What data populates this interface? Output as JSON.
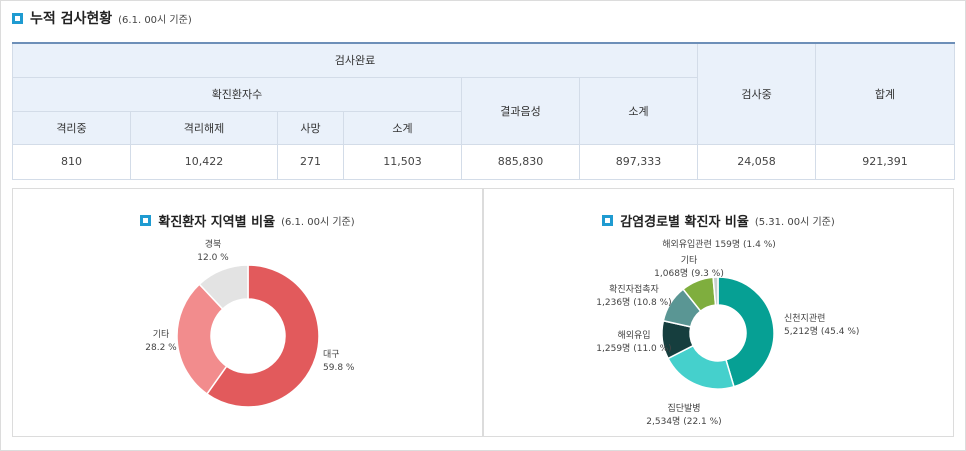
{
  "header": {
    "title": "누적 검사현황",
    "date": "(6.1. 00시 기준)"
  },
  "table": {
    "h_done": "검사완료",
    "h_confirmed": "확진환자수",
    "h_negative": "결과음성",
    "h_subtotal": "소계",
    "h_testing": "검사중",
    "h_total": "합계",
    "sub_headers": [
      "격리중",
      "격리해제",
      "사망",
      "소계"
    ],
    "values": [
      "810",
      "10,422",
      "271",
      "11,503",
      "885,830",
      "897,333",
      "24,058",
      "921,391"
    ]
  },
  "region_chart": {
    "title": "확진환자 지역별 비율",
    "date": "(6.1. 00시 기준)"
  },
  "route_chart": {
    "title": "감염경로별 확진자 비율",
    "date": "(5.31. 00시 기준)"
  },
  "chart_data": [
    {
      "type": "pie",
      "title": "확진환자 지역별 비율",
      "slices": [
        {
          "label": "대구",
          "value": 59.8,
          "value_label": "59.8 %",
          "color": "#e25a5c"
        },
        {
          "label": "기타",
          "value": 28.2,
          "value_label": "28.2 %",
          "color": "#f28c8d"
        },
        {
          "label": "경북",
          "value": 12.0,
          "value_label": "12.0 %",
          "color": "#e3e3e3"
        }
      ]
    },
    {
      "type": "pie",
      "title": "감염경로별 확진자 비율",
      "slices": [
        {
          "label": "신천지관련",
          "value": 45.4,
          "value_label": "5,212명 (45.4 %)",
          "color": "#06a094"
        },
        {
          "label": "집단발병",
          "value": 22.1,
          "value_label": "2,534명 (22.1 %)",
          "color": "#45d0cc"
        },
        {
          "label": "해외유입",
          "value": 11.0,
          "value_label": "1,259명 (11.0 %)",
          "color": "#163e3e"
        },
        {
          "label": "확진자접촉자",
          "value": 10.8,
          "value_label": "1,236명 (10.8 %)",
          "color": "#5a9694"
        },
        {
          "label": "기타",
          "value": 9.3,
          "value_label": "1,068명 (9.3 %)",
          "color": "#7fae3e"
        },
        {
          "label": "해외유입관련",
          "value": 1.4,
          "value_label": "159명 (1.4 %)",
          "color": "#c6cfcf"
        }
      ]
    }
  ]
}
